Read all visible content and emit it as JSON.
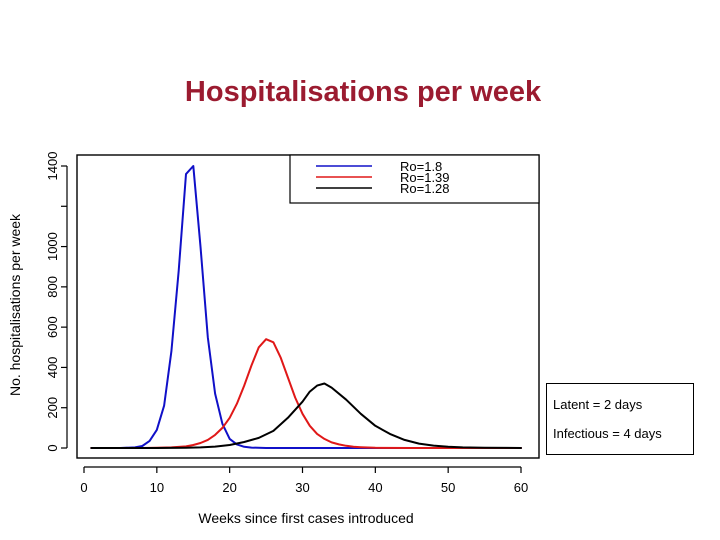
{
  "slide": {
    "title": "Hospitalisations per week",
    "title_color": "#9B1B30"
  },
  "annotations": {
    "latent": "Latent = 2 days",
    "infectious": "Infectious = 4 days"
  },
  "chart_data": {
    "type": "line",
    "title": "",
    "xlabel": "Weeks since first cases introduced",
    "ylabel": "No. hospitalisations per week",
    "xlim": [
      0,
      60
    ],
    "ylim": [
      0,
      1400
    ],
    "xticks": [
      0,
      10,
      20,
      30,
      40,
      50,
      60
    ],
    "yticks": [
      0,
      200,
      400,
      600,
      800,
      1000,
      1200,
      1400
    ],
    "ytick_labels": [
      "0",
      "200",
      "400",
      "600",
      "800",
      "1000",
      "",
      "1400"
    ],
    "grid": false,
    "legend_position": "top-right",
    "series": [
      {
        "name": "Ro=1.8",
        "color": "#1010C8",
        "x": [
          1,
          5,
          7,
          8,
          9,
          10,
          11,
          12,
          13,
          14,
          15,
          16,
          17,
          18,
          19,
          20,
          21,
          22,
          23,
          25,
          30,
          40,
          50,
          60
        ],
        "y": [
          0,
          0,
          3,
          10,
          35,
          90,
          210,
          480,
          880,
          1360,
          1400,
          1000,
          550,
          270,
          120,
          45,
          18,
          6,
          2,
          0,
          0,
          0,
          0,
          0
        ]
      },
      {
        "name": "Ro=1.39",
        "color": "#E01818",
        "x": [
          1,
          8,
          10,
          12,
          14,
          15,
          16,
          17,
          18,
          19,
          20,
          21,
          22,
          23,
          24,
          25,
          26,
          27,
          28,
          29,
          30,
          31,
          32,
          33,
          34,
          35,
          36,
          37,
          38,
          40,
          45,
          60
        ],
        "y": [
          0,
          0,
          1,
          3,
          8,
          15,
          25,
          40,
          65,
          100,
          150,
          220,
          310,
          410,
          500,
          540,
          525,
          450,
          350,
          250,
          170,
          110,
          70,
          45,
          28,
          18,
          11,
          6,
          4,
          1,
          0,
          0
        ]
      },
      {
        "name": "Ro=1.28",
        "color": "#000000",
        "x": [
          1,
          10,
          14,
          16,
          18,
          20,
          22,
          24,
          26,
          28,
          30,
          31,
          32,
          33,
          34,
          36,
          38,
          40,
          42,
          44,
          46,
          48,
          50,
          52,
          55,
          60
        ],
        "y": [
          0,
          0,
          1,
          3,
          7,
          15,
          30,
          50,
          85,
          150,
          230,
          280,
          310,
          320,
          300,
          240,
          170,
          110,
          70,
          40,
          22,
          12,
          6,
          3,
          1,
          0
        ]
      }
    ]
  }
}
